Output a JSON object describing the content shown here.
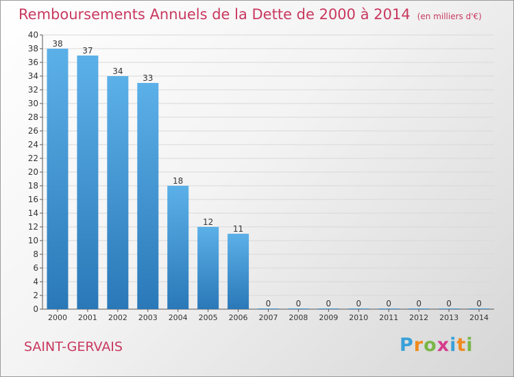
{
  "title": "Remboursements Annuels de la Dette de 2000 à 2014",
  "unit_note": "(en milliers d'€)",
  "commune": "SAINT-GERVAIS",
  "logo": {
    "text": "Proxiti",
    "letters": [
      {
        "ch": "P",
        "color": "#3aa0d8"
      },
      {
        "ch": "r",
        "color": "#f08a1c"
      },
      {
        "ch": "o",
        "color": "#7ab648"
      },
      {
        "ch": "x",
        "color": "#d63c8c"
      },
      {
        "ch": "i",
        "color": "#3aa0d8"
      },
      {
        "ch": "t",
        "color": "#f08a1c"
      },
      {
        "ch": "i",
        "color": "#7ab648"
      }
    ]
  },
  "colors": {
    "title": "#c8385e",
    "bar_top": "#5cb0e8",
    "bar_bottom": "#2a78b8",
    "axis_text": "#333333",
    "grid": "#d8d8d8"
  },
  "chart_data": {
    "type": "bar",
    "title": "Remboursements Annuels de la Dette de 2000 à 2014",
    "categories": [
      "2000",
      "2001",
      "2002",
      "2003",
      "2004",
      "2005",
      "2006",
      "2007",
      "2008",
      "2009",
      "2010",
      "2011",
      "2012",
      "2013",
      "2014"
    ],
    "values": [
      38,
      37,
      34,
      33,
      18,
      12,
      11,
      0,
      0,
      0,
      0,
      0,
      0,
      0,
      0
    ],
    "ylim": [
      0,
      40
    ],
    "ytick_step": 2,
    "xlabel": "",
    "ylabel": "",
    "grid": true,
    "data_labels": true
  }
}
